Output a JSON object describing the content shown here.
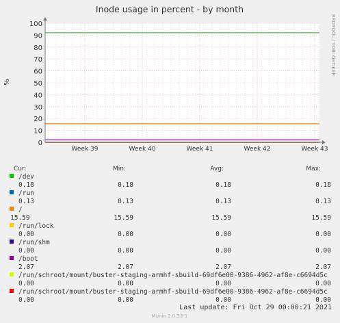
{
  "chart_data": {
    "type": "line",
    "title": "Inode usage in percent - by month",
    "ylabel": "%",
    "side_label": "RRDTOOL / TOBI OETIKER",
    "ylim": [
      0,
      100
    ],
    "y_ticks": [
      "0",
      "10",
      "20",
      "30",
      "40",
      "50",
      "60",
      "70",
      "80",
      "90",
      "100"
    ],
    "x_ticks": [
      "Week 39",
      "Week 40",
      "Week 41",
      "Week 42",
      "Week 43"
    ],
    "warning_line": 92,
    "colors": {
      "background": "#f0f0f0",
      "plot": "#ffffff",
      "grid": "#e8b0b0",
      "axis": "#777777",
      "warning": "#22aa22"
    },
    "series": [
      {
        "name": "/dev",
        "color": "#00cc00",
        "value": 0.18,
        "cur": "0.18",
        "min": "0.18",
        "avg": "0.18",
        "max": "0.18"
      },
      {
        "name": "/run",
        "color": "#0066b3",
        "value": 0.13,
        "cur": "0.13",
        "min": "0.13",
        "avg": "0.13",
        "max": "0.13"
      },
      {
        "name": "/",
        "color": "#ff8000",
        "value": 15.59,
        "cur": "15.59",
        "min": "15.59",
        "avg": "15.59",
        "max": "15.59"
      },
      {
        "name": "/run/lock",
        "color": "#ffcc00",
        "value": 0.0,
        "cur": "0.00",
        "min": "0.00",
        "avg": "0.00",
        "max": "0.00"
      },
      {
        "name": "/run/shm",
        "color": "#330099",
        "value": 0.0,
        "cur": "0.00",
        "min": "0.00",
        "avg": "0.00",
        "max": "0.00"
      },
      {
        "name": "/boot",
        "color": "#990099",
        "value": 2.07,
        "cur": "2.07",
        "min": "2.07",
        "avg": "2.07",
        "max": "2.07"
      },
      {
        "name": "/run/schroot/mount/buster-staging-armhf-sbuild-69df6e00-9386-4962-af8e-c6694d5c",
        "color": "#ccff00",
        "value": 0.0,
        "cur": "0.00",
        "min": "0.00",
        "avg": "0.00",
        "max": "0.00"
      },
      {
        "name": "/run/schroot/mount/buster-staging-armhf-sbuild-69df6e00-9386-4962-af8e-c6694d5c",
        "color": "#ff0000",
        "value": 0.0,
        "cur": "0.00",
        "min": "0.00",
        "avg": "0.00",
        "max": "0.00"
      }
    ],
    "legend_headers": {
      "cur": "Cur:",
      "min": "Min:",
      "avg": "Avg:",
      "max": "Max:"
    },
    "last_update": "Last update: Fri Oct 29 00:00:21 2021",
    "footer": "Munin 2.0.33-1"
  }
}
